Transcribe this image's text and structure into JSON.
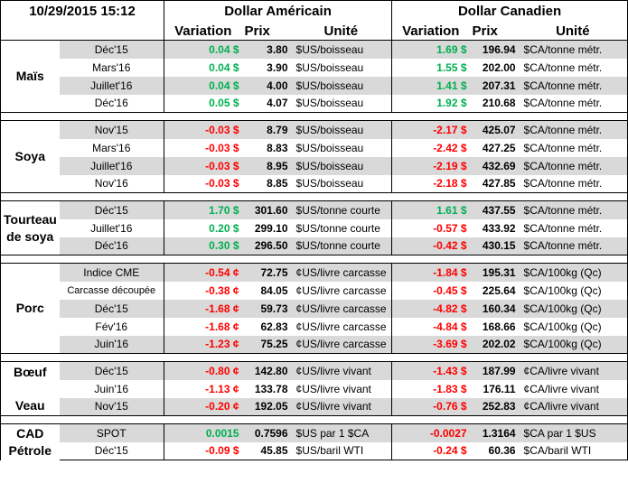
{
  "header": {
    "datetime": "10/29/2015 15:12",
    "usd_title": "Dollar Américain",
    "cad_title": "Dollar Canadien",
    "variation": "Variation",
    "prix": "Prix",
    "unite": "Unité"
  },
  "colors": {
    "positive": "#00b050",
    "negative": "#ff0000",
    "shade": "#d9d9d9"
  },
  "groups": [
    {
      "id": "mais",
      "label_lines": [
        "Maïs"
      ],
      "rows": [
        {
          "exp": "Déc'15",
          "us_var": "0.04 $",
          "us_sign": "pos",
          "us_price": "3.80",
          "us_unit": "$US/boisseau",
          "ca_var": "1.69 $",
          "ca_sign": "pos",
          "ca_price": "196.94",
          "ca_unit": "$CA/tonne métr."
        },
        {
          "exp": "Mars'16",
          "us_var": "0.04 $",
          "us_sign": "pos",
          "us_price": "3.90",
          "us_unit": "$US/boisseau",
          "ca_var": "1.55 $",
          "ca_sign": "pos",
          "ca_price": "202.00",
          "ca_unit": "$CA/tonne métr."
        },
        {
          "exp": "Juillet'16",
          "us_var": "0.04 $",
          "us_sign": "pos",
          "us_price": "4.00",
          "us_unit": "$US/boisseau",
          "ca_var": "1.41 $",
          "ca_sign": "pos",
          "ca_price": "207.31",
          "ca_unit": "$CA/tonne métr."
        },
        {
          "exp": "Déc'16",
          "us_var": "0.05 $",
          "us_sign": "pos",
          "us_price": "4.07",
          "us_unit": "$US/boisseau",
          "ca_var": "1.92 $",
          "ca_sign": "pos",
          "ca_price": "210.68",
          "ca_unit": "$CA/tonne métr."
        }
      ]
    },
    {
      "id": "soya",
      "label_lines": [
        "Soya"
      ],
      "rows": [
        {
          "exp": "Nov'15",
          "us_var": "-0.03 $",
          "us_sign": "neg",
          "us_price": "8.79",
          "us_unit": "$US/boisseau",
          "ca_var": "-2.17 $",
          "ca_sign": "neg",
          "ca_price": "425.07",
          "ca_unit": "$CA/tonne métr."
        },
        {
          "exp": "Mars'16",
          "us_var": "-0.03 $",
          "us_sign": "neg",
          "us_price": "8.83",
          "us_unit": "$US/boisseau",
          "ca_var": "-2.42 $",
          "ca_sign": "neg",
          "ca_price": "427.25",
          "ca_unit": "$CA/tonne métr."
        },
        {
          "exp": "Juillet'16",
          "us_var": "-0.03 $",
          "us_sign": "neg",
          "us_price": "8.95",
          "us_unit": "$US/boisseau",
          "ca_var": "-2.19 $",
          "ca_sign": "neg",
          "ca_price": "432.69",
          "ca_unit": "$CA/tonne métr."
        },
        {
          "exp": "Nov'16",
          "us_var": "-0.03 $",
          "us_sign": "neg",
          "us_price": "8.85",
          "us_unit": "$US/boisseau",
          "ca_var": "-2.18 $",
          "ca_sign": "neg",
          "ca_price": "427.85",
          "ca_unit": "$CA/tonne métr."
        }
      ]
    },
    {
      "id": "tourteau",
      "label_lines": [
        "Tourteau",
        "de soya"
      ],
      "rows": [
        {
          "exp": "Déc'15",
          "us_var": "1.70 $",
          "us_sign": "pos",
          "us_price": "301.60",
          "us_unit": "$US/tonne courte",
          "ca_var": "1.61 $",
          "ca_sign": "pos",
          "ca_price": "437.55",
          "ca_unit": "$CA/tonne métr."
        },
        {
          "exp": "Juillet'16",
          "us_var": "0.20 $",
          "us_sign": "pos",
          "us_price": "299.10",
          "us_unit": "$US/tonne courte",
          "ca_var": "-0.57 $",
          "ca_sign": "neg",
          "ca_price": "433.92",
          "ca_unit": "$CA/tonne métr."
        },
        {
          "exp": "Déc'16",
          "us_var": "0.30 $",
          "us_sign": "pos",
          "us_price": "296.50",
          "us_unit": "$US/tonne courte",
          "ca_var": "-0.42 $",
          "ca_sign": "neg",
          "ca_price": "430.15",
          "ca_unit": "$CA/tonne métr."
        }
      ]
    },
    {
      "id": "porc",
      "label_lines": [
        "Porc"
      ],
      "rows": [
        {
          "exp": "Indice CME",
          "us_var": "-0.54 ¢",
          "us_sign": "neg",
          "us_price": "72.75",
          "us_unit": "¢US/livre carcasse",
          "ca_var": "-1.84 $",
          "ca_sign": "neg",
          "ca_price": "195.31",
          "ca_unit": "$CA/100kg (Qc)"
        },
        {
          "exp": "Carcasse découpée",
          "us_var": "-0.38 ¢",
          "us_sign": "neg",
          "us_price": "84.05",
          "us_unit": "¢US/livre carcasse",
          "ca_var": "-0.45 $",
          "ca_sign": "neg",
          "ca_price": "225.64",
          "ca_unit": "$CA/100kg (Qc)"
        },
        {
          "exp": "Déc'15",
          "us_var": "-1.68 ¢",
          "us_sign": "neg",
          "us_price": "59.73",
          "us_unit": "¢US/livre carcasse",
          "ca_var": "-4.82 $",
          "ca_sign": "neg",
          "ca_price": "160.34",
          "ca_unit": "$CA/100kg (Qc)"
        },
        {
          "exp": "Fév'16",
          "us_var": "-1.68 ¢",
          "us_sign": "neg",
          "us_price": "62.83",
          "us_unit": "¢US/livre carcasse",
          "ca_var": "-4.84 $",
          "ca_sign": "neg",
          "ca_price": "168.66",
          "ca_unit": "$CA/100kg (Qc)"
        },
        {
          "exp": "Juin'16",
          "us_var": "-1.23 ¢",
          "us_sign": "neg",
          "us_price": "75.25",
          "us_unit": "¢US/livre carcasse",
          "ca_var": "-3.69 $",
          "ca_sign": "neg",
          "ca_price": "202.02",
          "ca_unit": "$CA/100kg (Qc)"
        }
      ]
    },
    {
      "id": "boeuf-veau",
      "label_lines": [
        "Bœuf",
        "",
        "Veau"
      ],
      "rows": [
        {
          "exp": "Déc'15",
          "us_var": "-0.80 ¢",
          "us_sign": "neg",
          "us_price": "142.80",
          "us_unit": "¢US/livre vivant",
          "ca_var": "-1.43 $",
          "ca_sign": "neg",
          "ca_price": "187.99",
          "ca_unit": "¢CA/livre vivant"
        },
        {
          "exp": "Juin'16",
          "us_var": "-1.13 ¢",
          "us_sign": "neg",
          "us_price": "133.78",
          "us_unit": "¢US/livre vivant",
          "ca_var": "-1.83 $",
          "ca_sign": "neg",
          "ca_price": "176.11",
          "ca_unit": "¢CA/livre vivant"
        },
        {
          "exp": "Nov'15",
          "us_var": "-0.20 ¢",
          "us_sign": "neg",
          "us_price": "192.05",
          "us_unit": "¢US/livre vivant",
          "ca_var": "-0.76 $",
          "ca_sign": "neg",
          "ca_price": "252.83",
          "ca_unit": "¢CA/livre vivant"
        }
      ]
    },
    {
      "id": "cad-petrole",
      "label_lines": [
        "CAD",
        "Pétrole"
      ],
      "rows": [
        {
          "exp": "SPOT",
          "us_var": "0.0015",
          "us_sign": "pos",
          "us_price": "0.7596",
          "us_unit": "$US par 1 $CA",
          "ca_var": "-0.0027",
          "ca_sign": "neg",
          "ca_price": "1.3164",
          "ca_unit": "$CA par 1 $US"
        },
        {
          "exp": "Déc'15",
          "us_var": "-0.09 $",
          "us_sign": "neg",
          "us_price": "45.85",
          "us_unit": "$US/baril WTI",
          "ca_var": "-0.24 $",
          "ca_sign": "neg",
          "ca_price": "60.36",
          "ca_unit": "$CA/baril WTI"
        }
      ]
    }
  ]
}
